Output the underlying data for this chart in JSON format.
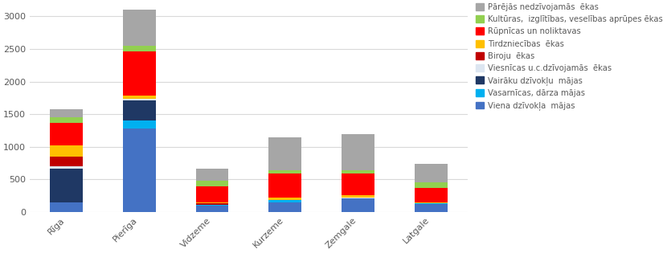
{
  "categories": [
    "Rīga",
    "Pierīga",
    "Vidzeme",
    "Kurzeme",
    "Zemgale",
    "Latgale"
  ],
  "series": [
    {
      "label": "Viena dzīvokļa  mājas",
      "color": "#4472c4",
      "values": [
        150,
        1280,
        100,
        150,
        210,
        120
      ]
    },
    {
      "label": "Vasarnīcas, dārza mājas",
      "color": "#00b0f0",
      "values": [
        0,
        130,
        5,
        30,
        5,
        10
      ]
    },
    {
      "label": "Vairāku dzīvokļu  mājas",
      "color": "#1f3864",
      "values": [
        520,
        300,
        0,
        0,
        0,
        0
      ]
    },
    {
      "label": "Viesnīcas u.c.dzīvojamās  ēkas",
      "color": "#dce6f1",
      "values": [
        30,
        30,
        5,
        10,
        5,
        5
      ]
    },
    {
      "label": "Biroju  ēkas",
      "color": "#c00000",
      "values": [
        150,
        0,
        20,
        0,
        0,
        0
      ]
    },
    {
      "label": "Tirdzniecības  ēkas",
      "color": "#ffc000",
      "values": [
        170,
        50,
        15,
        30,
        35,
        15
      ]
    },
    {
      "label": "Rūpnīcas un noliktavas",
      "color": "#ff0000",
      "values": [
        350,
        670,
        250,
        370,
        330,
        220
      ]
    },
    {
      "label": "Kultūras,  izglītības, veselības aprūpes ēkas",
      "color": "#92d050",
      "values": [
        80,
        90,
        80,
        50,
        50,
        80
      ]
    },
    {
      "label": "Pārējās nedzīvojamās  ēkas",
      "color": "#a6a6a6",
      "values": [
        130,
        550,
        195,
        510,
        565,
        290
      ]
    }
  ],
  "ylim": [
    0,
    3200
  ],
  "yticks": [
    0,
    500,
    1000,
    1500,
    2000,
    2500,
    3000
  ],
  "background_color": "#ffffff",
  "grid_color": "#d9d9d9"
}
